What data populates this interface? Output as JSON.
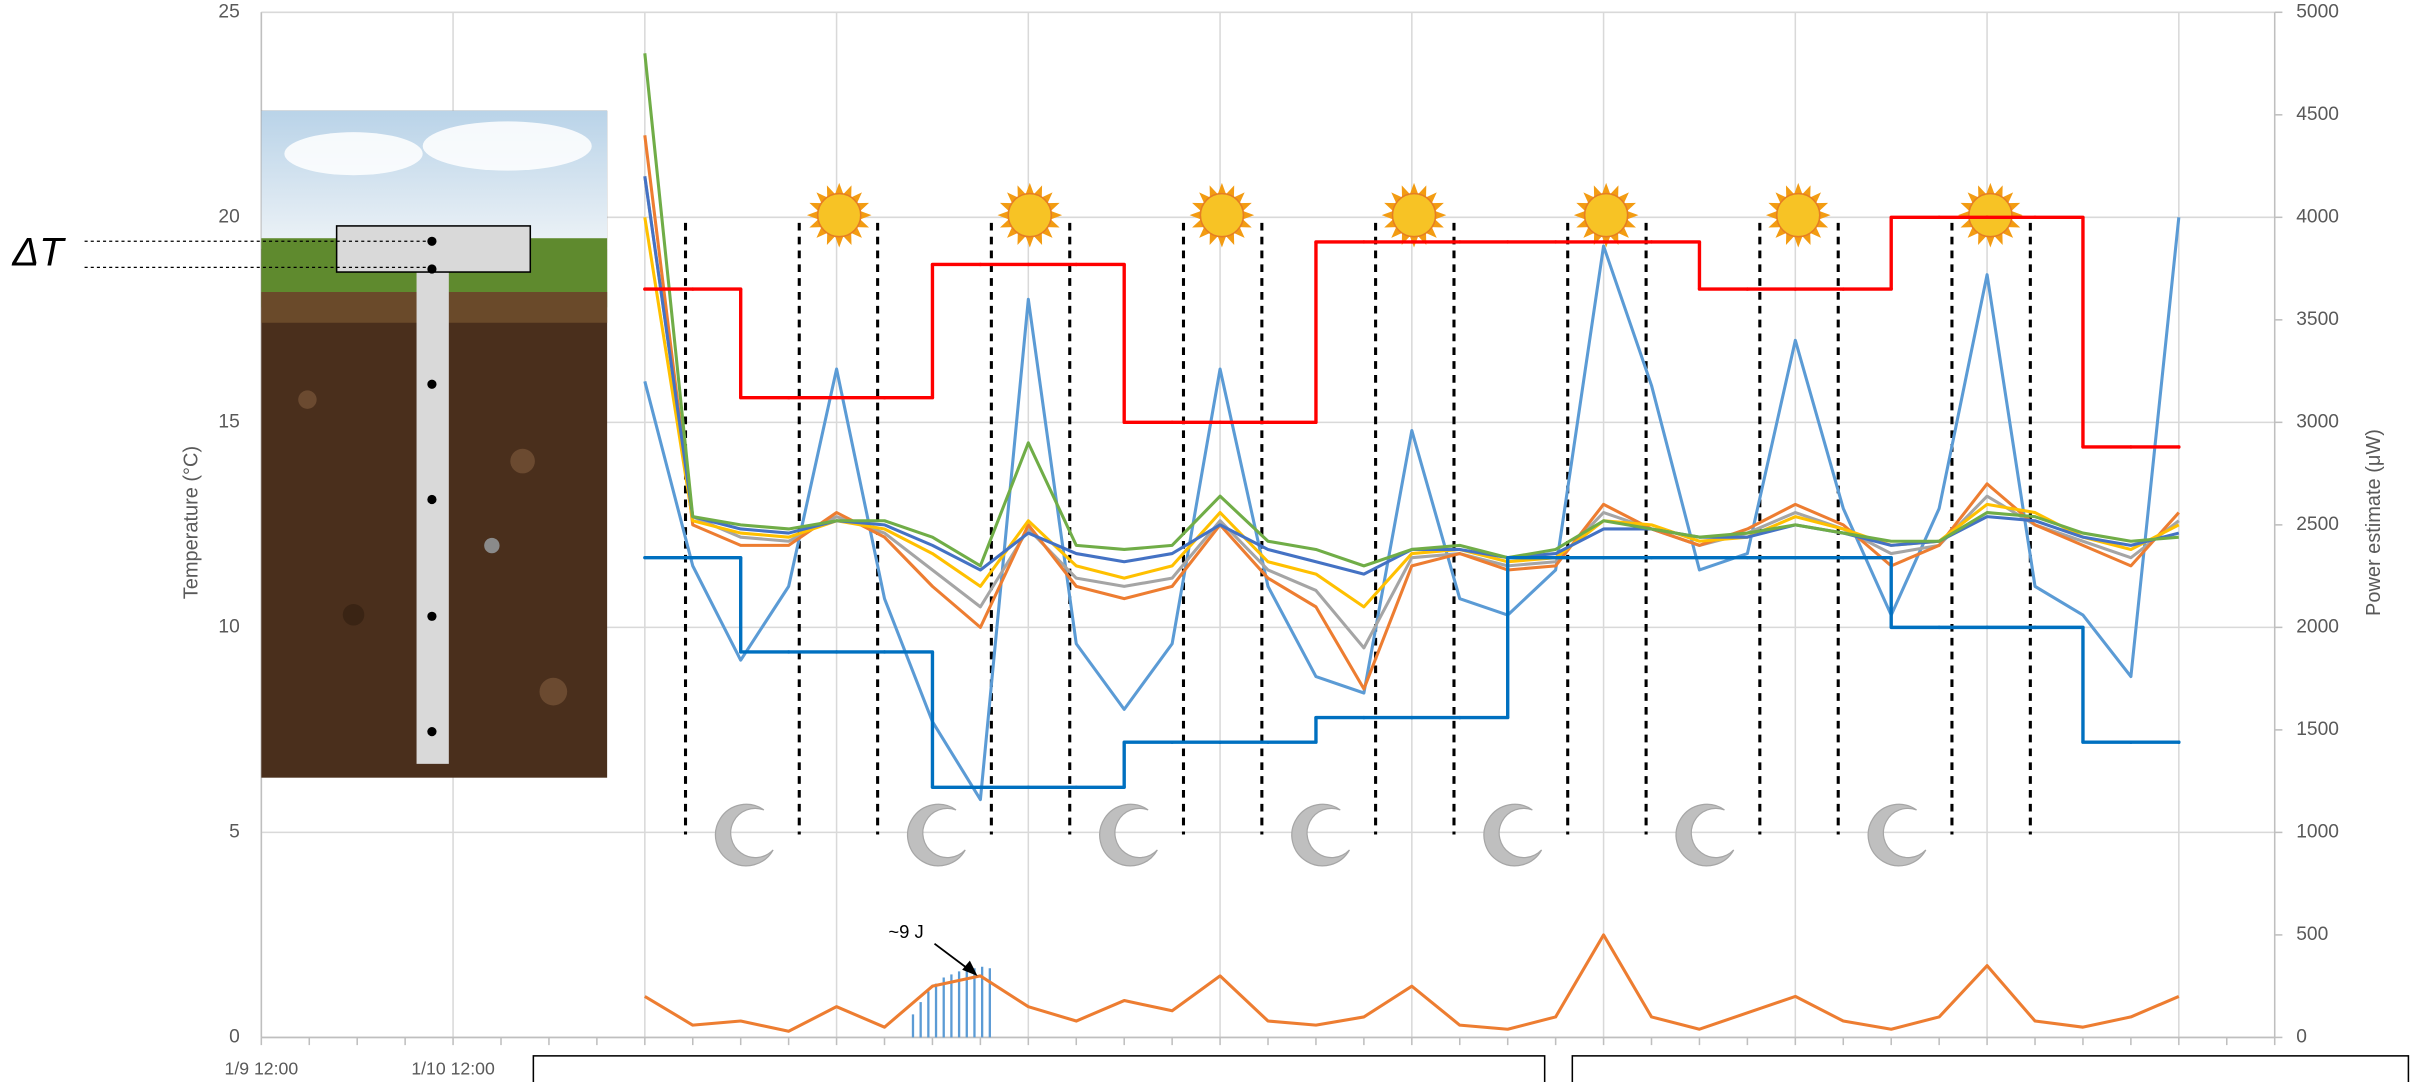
{
  "chart_data": {
    "type": "line",
    "y_axis_label": "Temperature (°C)",
    "y2_axis_label": "Power estimate (μW)",
    "annotations": [
      "~9 J",
      "ΔT"
    ],
    "categories": [
      "1/9 12:00",
      null,
      null,
      null,
      "1/10 12:00",
      null,
      null,
      null,
      null,
      null,
      null,
      null,
      null,
      null,
      null,
      null,
      null,
      null,
      null,
      null,
      null,
      null,
      null,
      null,
      null,
      null,
      null,
      null,
      null,
      null,
      null,
      null,
      null,
      null,
      null,
      null,
      null,
      null,
      null,
      null,
      null,
      null,
      null
    ],
    "ylim": [
      0,
      25
    ],
    "yticks": [
      0,
      5,
      10,
      15,
      20,
      25
    ],
    "y2lim": [
      0,
      5000
    ],
    "y2ticks": [
      0,
      500,
      1000,
      1500,
      2000,
      2500,
      3000,
      3500,
      4000,
      4500,
      5000
    ],
    "grid": true,
    "series": [
      {
        "color": "#5b9bd5",
        "values": [
          null,
          null,
          null,
          null,
          null,
          null,
          null,
          null,
          16,
          11.5,
          9.2,
          11,
          16.3,
          10.7,
          7.7,
          5.8,
          18,
          9.6,
          8,
          9.6,
          16.3,
          11,
          8.8,
          8.4,
          14.8,
          10.7,
          10.3,
          11.4,
          19.3,
          15.9,
          11.4,
          11.8,
          17,
          12.9,
          10.3,
          12.9,
          18.6,
          11,
          10.3,
          8.8,
          20,
          null,
          null
        ]
      },
      {
        "color": "#a5a5a5",
        "values": [
          null,
          null,
          null,
          null,
          null,
          null,
          null,
          null,
          21,
          12.7,
          12.2,
          12.1,
          12.7,
          12.3,
          11.4,
          10.5,
          12.4,
          11.2,
          11,
          11.2,
          12.6,
          11.4,
          10.9,
          9.5,
          11.7,
          11.8,
          11.5,
          11.6,
          12.8,
          12.4,
          12,
          12.3,
          12.8,
          12.4,
          11.8,
          12,
          13.2,
          12.5,
          12.1,
          11.7,
          12.6,
          null,
          null
        ]
      },
      {
        "color": "#ed7d31",
        "values": [
          null,
          null,
          null,
          null,
          null,
          null,
          null,
          null,
          22,
          12.5,
          12,
          12,
          12.8,
          12.2,
          11,
          10,
          12.5,
          11,
          10.7,
          11,
          12.5,
          11.2,
          10.5,
          8.5,
          11.5,
          11.8,
          11.4,
          11.5,
          13,
          12.4,
          12,
          12.4,
          13,
          12.5,
          11.5,
          12,
          13.5,
          12.5,
          12,
          11.5,
          12.8,
          null,
          null
        ]
      },
      {
        "color": "#ffc000",
        "values": [
          null,
          null,
          null,
          null,
          null,
          null,
          null,
          null,
          20,
          12.6,
          12.3,
          12.2,
          12.6,
          12.4,
          11.8,
          11,
          12.6,
          11.5,
          11.2,
          11.5,
          12.8,
          11.6,
          11.3,
          10.5,
          11.8,
          11.9,
          11.6,
          11.7,
          12.6,
          12.5,
          12.1,
          12.2,
          12.7,
          12.4,
          12,
          12.1,
          13,
          12.8,
          12.2,
          11.9,
          12.5,
          null,
          null
        ]
      },
      {
        "color": "#4472c4",
        "values": [
          null,
          null,
          null,
          null,
          null,
          null,
          null,
          null,
          21,
          12.7,
          12.4,
          12.3,
          12.6,
          12.5,
          12,
          11.4,
          12.3,
          11.8,
          11.6,
          11.8,
          12.5,
          11.9,
          11.6,
          11.3,
          11.9,
          11.9,
          11.7,
          11.8,
          12.4,
          12.4,
          12.2,
          12.2,
          12.5,
          12.3,
          12,
          12.1,
          12.7,
          12.6,
          12.2,
          12,
          12.3,
          null,
          null
        ]
      },
      {
        "color": "#70ad47",
        "values": [
          null,
          null,
          null,
          null,
          null,
          null,
          null,
          null,
          24,
          12.7,
          12.5,
          12.4,
          12.6,
          12.6,
          12.2,
          11.5,
          14.5,
          12,
          11.9,
          12,
          13.2,
          12.1,
          11.9,
          11.5,
          11.9,
          12,
          11.7,
          11.9,
          12.6,
          12.4,
          12.2,
          12.3,
          12.5,
          12.3,
          12.1,
          12.1,
          12.8,
          12.7,
          12.3,
          12.1,
          12.2,
          null,
          null
        ]
      },
      {
        "color": "#ff0000",
        "axis": "y2",
        "step": true,
        "values": [
          null,
          null,
          null,
          null,
          null,
          null,
          null,
          null,
          3650,
          3650,
          3120,
          3120,
          3120,
          3120,
          3770,
          3770,
          3770,
          3770,
          3000,
          3000,
          3000,
          3000,
          3880,
          3880,
          3880,
          3880,
          3880,
          3880,
          3880,
          3880,
          3650,
          3650,
          3650,
          3650,
          4000,
          4000,
          4000,
          4000,
          2880,
          2880,
          2880,
          null,
          null
        ]
      },
      {
        "color": "#0070c0",
        "axis": "y2",
        "step": true,
        "values": [
          null,
          null,
          null,
          null,
          null,
          null,
          null,
          null,
          2340,
          2340,
          1880,
          1880,
          1880,
          1880,
          1220,
          1220,
          1220,
          1220,
          1440,
          1440,
          1440,
          1440,
          1560,
          1560,
          1560,
          1560,
          2340,
          2340,
          2340,
          2340,
          2340,
          2340,
          2340,
          2340,
          2000,
          2000,
          2000,
          2000,
          1440,
          1440,
          1440,
          null,
          null
        ]
      },
      {
        "color": "#ed7d31",
        "axis": "y2",
        "values": [
          null,
          null,
          null,
          null,
          null,
          null,
          null,
          null,
          200,
          60,
          80,
          30,
          150,
          50,
          250,
          300,
          150,
          80,
          180,
          130,
          300,
          80,
          60,
          100,
          250,
          60,
          40,
          100,
          500,
          100,
          40,
          120,
          200,
          80,
          40,
          100,
          350,
          80,
          50,
          100,
          200,
          null,
          null
        ]
      }
    ]
  }
}
